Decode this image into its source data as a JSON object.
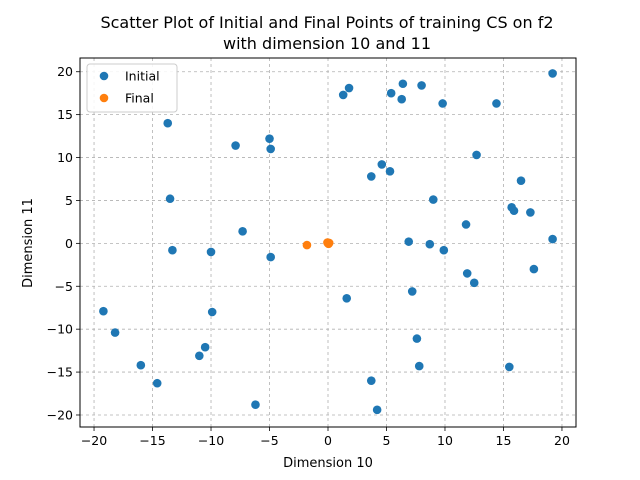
{
  "chart_data": {
    "type": "scatter",
    "title_line1": "Scatter Plot of Initial and Final Points of training CS on f2",
    "title_line2": "with dimension 10 and 11",
    "xlabel": "Dimension 10",
    "ylabel": "Dimension 11",
    "xlim": [
      -21.2,
      21.2
    ],
    "ylim": [
      -21.4,
      21.6
    ],
    "xticks": [
      -20,
      -15,
      -10,
      -5,
      0,
      5,
      10,
      15,
      20
    ],
    "yticks": [
      -20,
      -15,
      -10,
      -5,
      0,
      5,
      10,
      15,
      20
    ],
    "grid": true,
    "legend_position": "upper left",
    "series": [
      {
        "name": "Initial",
        "color": "#1f77b4",
        "points": [
          [
            -19.2,
            -7.9
          ],
          [
            -18.2,
            -10.4
          ],
          [
            -16.0,
            -14.2
          ],
          [
            -14.6,
            -16.3
          ],
          [
            -13.7,
            14.0
          ],
          [
            -13.5,
            5.2
          ],
          [
            -13.3,
            -0.8
          ],
          [
            -11.0,
            -13.1
          ],
          [
            -10.5,
            -12.1
          ],
          [
            -10.0,
            -1.0
          ],
          [
            -9.9,
            -8.0
          ],
          [
            -7.9,
            11.4
          ],
          [
            -7.3,
            1.4
          ],
          [
            -6.2,
            -18.8
          ],
          [
            -5.0,
            12.2
          ],
          [
            -4.9,
            11.0
          ],
          [
            -4.9,
            -1.6
          ],
          [
            1.3,
            17.3
          ],
          [
            1.6,
            -6.4
          ],
          [
            1.8,
            18.1
          ],
          [
            3.7,
            7.8
          ],
          [
            3.7,
            -16.0
          ],
          [
            4.2,
            -19.4
          ],
          [
            4.6,
            9.2
          ],
          [
            5.3,
            8.4
          ],
          [
            5.4,
            17.5
          ],
          [
            6.3,
            16.8
          ],
          [
            6.4,
            18.6
          ],
          [
            6.9,
            0.2
          ],
          [
            7.2,
            -5.6
          ],
          [
            7.6,
            -11.1
          ],
          [
            7.8,
            -14.3
          ],
          [
            8.0,
            18.4
          ],
          [
            8.7,
            -0.1
          ],
          [
            9.0,
            5.1
          ],
          [
            9.8,
            16.3
          ],
          [
            9.9,
            -0.8
          ],
          [
            11.8,
            2.2
          ],
          [
            11.9,
            -3.5
          ],
          [
            12.5,
            -4.6
          ],
          [
            12.7,
            10.3
          ],
          [
            14.4,
            16.3
          ],
          [
            15.5,
            -14.4
          ],
          [
            15.7,
            4.2
          ],
          [
            15.9,
            3.8
          ],
          [
            16.5,
            7.3
          ],
          [
            17.3,
            3.6
          ],
          [
            17.6,
            -3.0
          ],
          [
            19.2,
            19.8
          ],
          [
            19.2,
            0.5
          ]
        ]
      },
      {
        "name": "Final",
        "color": "#ff7f0e",
        "points": [
          [
            -1.8,
            -0.2
          ],
          [
            0.0,
            0.0
          ],
          [
            0.1,
            0.05
          ],
          [
            -0.05,
            0.1
          ],
          [
            0.05,
            -0.05
          ]
        ]
      }
    ]
  }
}
